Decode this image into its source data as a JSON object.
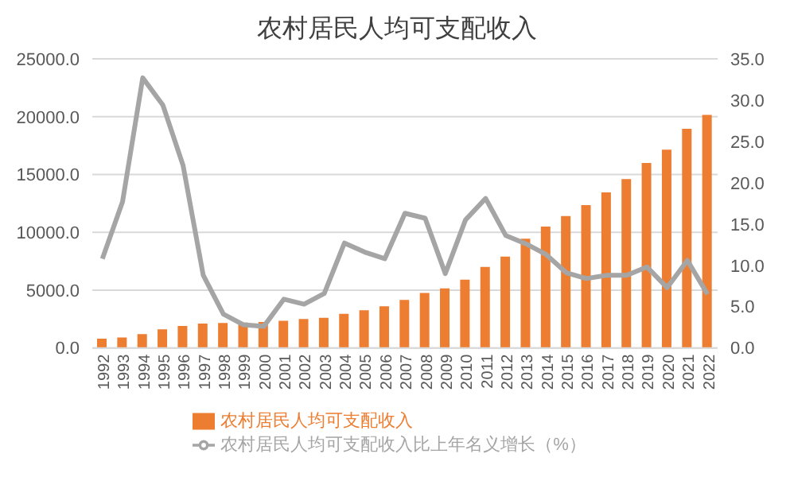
{
  "chart_data": {
    "type": "bar",
    "title": "农村居民人均可支配收入",
    "categories": [
      "1992",
      "1993",
      "1994",
      "1995",
      "1996",
      "1997",
      "1998",
      "1999",
      "2000",
      "2001",
      "2002",
      "2003",
      "2004",
      "2005",
      "2006",
      "2007",
      "2008",
      "2009",
      "2010",
      "2011",
      "2012",
      "2013",
      "2014",
      "2015",
      "2016",
      "2017",
      "2018",
      "2019",
      "2020",
      "2021",
      "2022"
    ],
    "series": [
      {
        "name": "农村居民人均可支配收入",
        "color": "#ed7d31",
        "values": [
          800,
          900,
          1200,
          1600,
          1900,
          2100,
          2150,
          2200,
          2250,
          2350,
          2500,
          2600,
          2950,
          3250,
          3600,
          4150,
          4750,
          5150,
          5900,
          7000,
          7900,
          9450,
          10500,
          11400,
          12350,
          13450,
          14600,
          16000,
          17150,
          18950,
          20150
        ]
      },
      {
        "name": "农村居民人均可支配收入比上年名义增长（%）",
        "type": "line",
        "axis": "y2",
        "color": "#a5a5a5",
        "values": [
          10.8,
          17.7,
          32.7,
          29.4,
          22.1,
          8.8,
          4.1,
          2.8,
          2.6,
          5.9,
          5.3,
          6.6,
          12.7,
          11.6,
          10.8,
          16.3,
          15.7,
          9.0,
          15.5,
          18.1,
          13.6,
          12.6,
          11.3,
          9.1,
          8.4,
          8.8,
          8.8,
          9.8,
          7.3,
          10.6,
          6.5
        ]
      }
    ],
    "ylim": [
      0,
      25000
    ],
    "yticks": [
      {
        "value": 0,
        "label": "0.0"
      },
      {
        "value": 5000,
        "label": "5000.0"
      },
      {
        "value": 10000,
        "label": "10000.0"
      },
      {
        "value": 15000,
        "label": "15000.0"
      },
      {
        "value": 20000,
        "label": "20000.0"
      },
      {
        "value": 25000,
        "label": "25000.0"
      }
    ],
    "y2lim": [
      0,
      35
    ],
    "y2ticks": [
      {
        "value": 0,
        "label": "0.0"
      },
      {
        "value": 5,
        "label": "5.0"
      },
      {
        "value": 10,
        "label": "10.0"
      },
      {
        "value": 15,
        "label": "15.0"
      },
      {
        "value": 20,
        "label": "20.0"
      },
      {
        "value": 25,
        "label": "25.0"
      },
      {
        "value": 30,
        "label": "30.0"
      },
      {
        "value": 35,
        "label": "35.0"
      }
    ],
    "grid": "y",
    "legend": "bottom",
    "marker": "none"
  }
}
